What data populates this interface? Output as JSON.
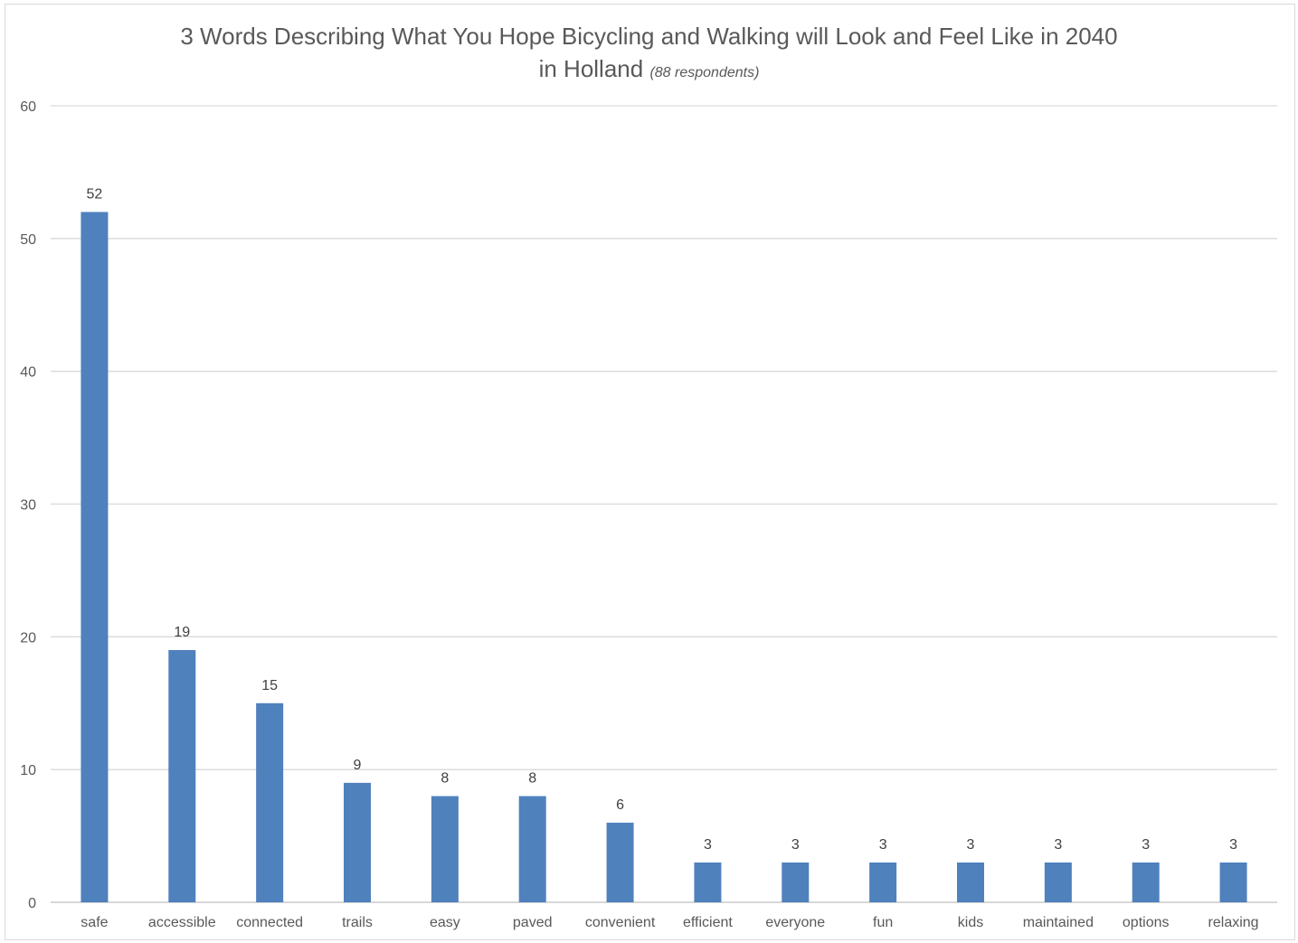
{
  "chart_data": {
    "type": "bar",
    "title": "3 Words Describing What You Hope Bicycling and Walking will Look and Feel Like in 2040",
    "title_line2": "in Holland",
    "subtitle": "(88 respondents)",
    "xlabel": "",
    "ylabel": "",
    "categories": [
      "safe",
      "accessible",
      "connected",
      "trails",
      "easy",
      "paved",
      "convenient",
      "efficient",
      "everyone",
      "fun",
      "kids",
      "maintained",
      "options",
      "relaxing"
    ],
    "values": [
      52,
      19,
      15,
      9,
      8,
      8,
      6,
      3,
      3,
      3,
      3,
      3,
      3,
      3
    ],
    "ylim": [
      0,
      60
    ],
    "yticks": [
      0,
      10,
      20,
      30,
      40,
      50,
      60
    ],
    "grid": true,
    "data_labels": true,
    "legend": "none",
    "bar_color": "#4f81bd"
  }
}
